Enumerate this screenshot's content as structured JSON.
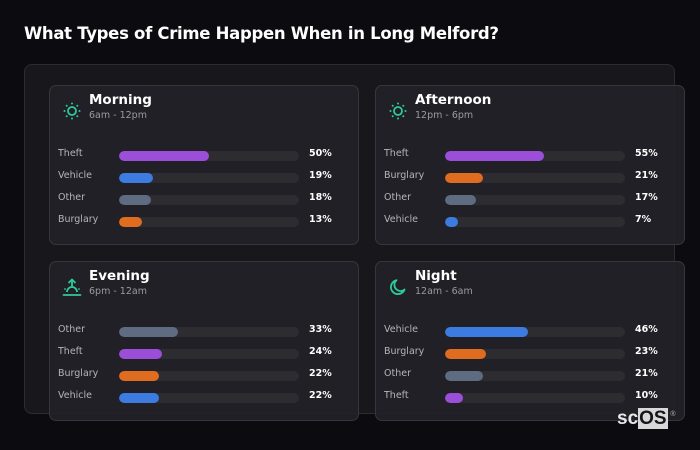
{
  "header": {
    "title": "What Types of Crime Happen When in Long Melford?"
  },
  "colors": {
    "theft": "#9b4fd9",
    "vehicle": "#3c7be0",
    "other": "#5f6b80",
    "burglary": "#e06c1f",
    "icon": "#2fc99a",
    "track": "#2c2c31"
  },
  "cards": [
    {
      "title": "Morning",
      "subtitle": "6am - 12pm",
      "icon": "sun-icon",
      "rows": [
        {
          "label": "Theft",
          "value": 50,
          "value_label": "50%",
          "color": "#9b4fd9"
        },
        {
          "label": "Vehicle",
          "value": 19,
          "value_label": "19%",
          "color": "#3c7be0"
        },
        {
          "label": "Other",
          "value": 18,
          "value_label": "18%",
          "color": "#5f6b80"
        },
        {
          "label": "Burglary",
          "value": 13,
          "value_label": "13%",
          "color": "#e06c1f"
        }
      ]
    },
    {
      "title": "Afternoon",
      "subtitle": "12pm - 6pm",
      "icon": "sun-icon",
      "rows": [
        {
          "label": "Theft",
          "value": 55,
          "value_label": "55%",
          "color": "#9b4fd9"
        },
        {
          "label": "Burglary",
          "value": 21,
          "value_label": "21%",
          "color": "#e06c1f"
        },
        {
          "label": "Other",
          "value": 17,
          "value_label": "17%",
          "color": "#5f6b80"
        },
        {
          "label": "Vehicle",
          "value": 7,
          "value_label": "7%",
          "color": "#3c7be0"
        }
      ]
    },
    {
      "title": "Evening",
      "subtitle": "6pm - 12am",
      "icon": "sunset-icon",
      "rows": [
        {
          "label": "Other",
          "value": 33,
          "value_label": "33%",
          "color": "#5f6b80"
        },
        {
          "label": "Theft",
          "value": 24,
          "value_label": "24%",
          "color": "#9b4fd9"
        },
        {
          "label": "Burglary",
          "value": 22,
          "value_label": "22%",
          "color": "#e06c1f"
        },
        {
          "label": "Vehicle",
          "value": 22,
          "value_label": "22%",
          "color": "#3c7be0"
        }
      ]
    },
    {
      "title": "Night",
      "subtitle": "12am - 6am",
      "icon": "moon-icon",
      "rows": [
        {
          "label": "Vehicle",
          "value": 46,
          "value_label": "46%",
          "color": "#3c7be0"
        },
        {
          "label": "Burglary",
          "value": 23,
          "value_label": "23%",
          "color": "#e06c1f"
        },
        {
          "label": "Other",
          "value": 21,
          "value_label": "21%",
          "color": "#5f6b80"
        },
        {
          "label": "Theft",
          "value": 10,
          "value_label": "10%",
          "color": "#9b4fd9"
        }
      ]
    }
  ],
  "logo": {
    "text_a": "sc",
    "text_b": "OS",
    "mark": "®"
  },
  "chart_data": [
    {
      "type": "bar",
      "orientation": "horizontal",
      "title": "Morning",
      "subtitle": "6am - 12pm",
      "categories": [
        "Theft",
        "Vehicle",
        "Other",
        "Burglary"
      ],
      "values": [
        50,
        19,
        18,
        13
      ],
      "unit": "%",
      "xlim": [
        0,
        100
      ]
    },
    {
      "type": "bar",
      "orientation": "horizontal",
      "title": "Afternoon",
      "subtitle": "12pm - 6pm",
      "categories": [
        "Theft",
        "Burglary",
        "Other",
        "Vehicle"
      ],
      "values": [
        55,
        21,
        17,
        7
      ],
      "unit": "%",
      "xlim": [
        0,
        100
      ]
    },
    {
      "type": "bar",
      "orientation": "horizontal",
      "title": "Evening",
      "subtitle": "6pm - 12am",
      "categories": [
        "Other",
        "Theft",
        "Burglary",
        "Vehicle"
      ],
      "values": [
        33,
        24,
        22,
        22
      ],
      "unit": "%",
      "xlim": [
        0,
        100
      ]
    },
    {
      "type": "bar",
      "orientation": "horizontal",
      "title": "Night",
      "subtitle": "12am - 6am",
      "categories": [
        "Vehicle",
        "Burglary",
        "Other",
        "Theft"
      ],
      "values": [
        46,
        23,
        21,
        10
      ],
      "unit": "%",
      "xlim": [
        0,
        100
      ]
    }
  ]
}
